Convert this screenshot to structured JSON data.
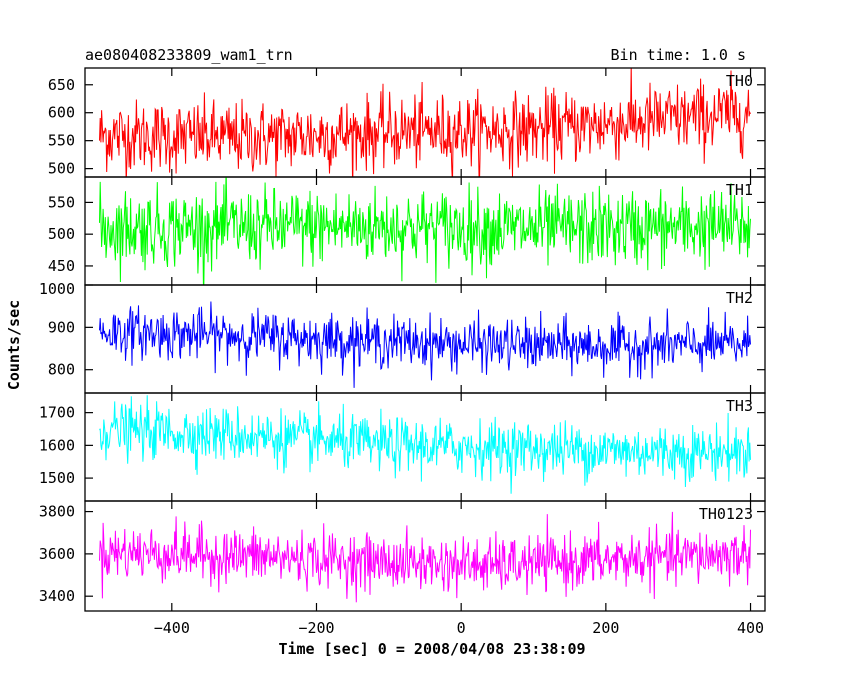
{
  "header": {
    "left_title": "ae080408233809_wam1_trn",
    "right_title": "Bin time: 1.0 s"
  },
  "chart_data": {
    "type": "line",
    "title": "ae080408233809_wam1_trn",
    "subtitle": "Bin time: 1.0 s",
    "xlabel": "Time [sec] 0 = 2008/04/08 23:38:09",
    "ylabel": "Counts/sec",
    "xlim": [
      -520,
      420
    ],
    "x_ticks": [
      -400,
      -200,
      0,
      200,
      400
    ],
    "x_tick_labels": [
      "−400",
      "−200",
      "0",
      "200",
      "400"
    ],
    "x_range": [
      -500,
      400
    ],
    "bin_seconds": 1.0,
    "grid": false,
    "panels": [
      {
        "name": "TH0",
        "color": "#ff0000",
        "ylim": [
          485,
          680
        ],
        "y_ticks": [
          500,
          550,
          600,
          650
        ],
        "y_tick_labels": [
          "500",
          "550",
          "600",
          "650"
        ],
        "trend": [
          [
            -500,
            560
          ],
          [
            -300,
            555
          ],
          [
            -100,
            565
          ],
          [
            100,
            570
          ],
          [
            300,
            590
          ],
          [
            400,
            600
          ]
        ],
        "noise_sd": 32
      },
      {
        "name": "TH1",
        "color": "#00ff00",
        "ylim": [
          420,
          590
        ],
        "y_ticks": [
          450,
          500,
          550
        ],
        "y_tick_labels": [
          "450",
          "500",
          "550"
        ],
        "trend": [
          [
            -500,
            510
          ],
          [
            -100,
            512
          ],
          [
            100,
            508
          ],
          [
            400,
            512
          ]
        ],
        "noise_sd": 30
      },
      {
        "name": "TH2",
        "color": "#0000ff",
        "ylim": [
          745,
          1000
        ],
        "y_ticks": [
          800,
          900,
          1000
        ],
        "y_tick_labels": [
          "800",
          "900",
          "1000"
        ],
        "trend": [
          [
            -500,
            890
          ],
          [
            -300,
            880
          ],
          [
            -150,
            870
          ],
          [
            0,
            860
          ],
          [
            200,
            855
          ],
          [
            400,
            860
          ]
        ],
        "noise_sd": 30
      },
      {
        "name": "TH3",
        "color": "#00ffff",
        "ylim": [
          1430,
          1760
        ],
        "y_ticks": [
          1500,
          1600,
          1700
        ],
        "y_tick_labels": [
          "1500",
          "1600",
          "1700"
        ],
        "trend": [
          [
            -500,
            1650
          ],
          [
            -300,
            1630
          ],
          [
            -100,
            1600
          ],
          [
            100,
            1590
          ],
          [
            300,
            1580
          ],
          [
            400,
            1580
          ]
        ],
        "noise_sd": 42
      },
      {
        "name": "TH0123",
        "color": "#ff00ff",
        "ylim": [
          3330,
          3850
        ],
        "y_ticks": [
          3400,
          3600,
          3800
        ],
        "y_tick_labels": [
          "3400",
          "3600",
          "3800"
        ],
        "trend": [
          [
            -500,
            3610
          ],
          [
            -300,
            3590
          ],
          [
            -100,
            3560
          ],
          [
            50,
            3545
          ],
          [
            200,
            3570
          ],
          [
            400,
            3600
          ]
        ],
        "noise_sd": 65
      }
    ]
  }
}
